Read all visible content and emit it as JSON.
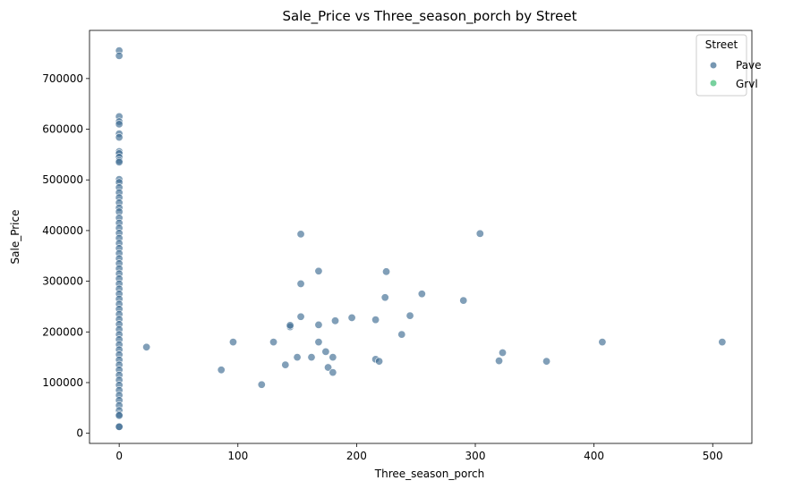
{
  "chart_data": {
    "type": "scatter",
    "title": "Sale_Price vs Three_season_porch by Street",
    "xlabel": "Three_season_porch",
    "ylabel": "Sale_Price",
    "xlim": [
      -25,
      533
    ],
    "ylim": [
      -20000,
      795000
    ],
    "xticks": [
      0,
      100,
      200,
      300,
      400,
      500
    ],
    "yticks": [
      0,
      100000,
      200000,
      300000,
      400000,
      500000,
      600000,
      700000
    ],
    "grid": false,
    "legend": {
      "title": "Street",
      "position": "top-right",
      "entries": [
        {
          "label": "Pave",
          "color": "#3d6b92"
        },
        {
          "label": "Grvl",
          "color": "#56c586"
        }
      ]
    },
    "series": [
      {
        "name": "Pave",
        "color": "#3d6b92",
        "points": [
          {
            "x": 0,
            "y": 755000
          },
          {
            "x": 0,
            "y": 745000
          },
          {
            "x": 0,
            "y": 625000
          },
          {
            "x": 0,
            "y": 615000
          },
          {
            "x": 0,
            "y": 610000
          },
          {
            "x": 0,
            "y": 591000
          },
          {
            "x": 0,
            "y": 584000
          },
          {
            "x": 0,
            "y": 556000
          },
          {
            "x": 0,
            "y": 552000
          },
          {
            "x": 0,
            "y": 545000
          },
          {
            "x": 0,
            "y": 538000
          },
          {
            "x": 0,
            "y": 535000
          },
          {
            "x": 0,
            "y": 501000
          },
          {
            "x": 0,
            "y": 495000
          },
          {
            "x": 0,
            "y": 485000
          },
          {
            "x": 0,
            "y": 475000
          },
          {
            "x": 0,
            "y": 465000
          },
          {
            "x": 0,
            "y": 455000
          },
          {
            "x": 0,
            "y": 445000
          },
          {
            "x": 0,
            "y": 437000
          },
          {
            "x": 0,
            "y": 425000
          },
          {
            "x": 0,
            "y": 415000
          },
          {
            "x": 0,
            "y": 405000
          },
          {
            "x": 0,
            "y": 395000
          },
          {
            "x": 0,
            "y": 385000
          },
          {
            "x": 0,
            "y": 375000
          },
          {
            "x": 0,
            "y": 365000
          },
          {
            "x": 0,
            "y": 355000
          },
          {
            "x": 0,
            "y": 345000
          },
          {
            "x": 0,
            "y": 335000
          },
          {
            "x": 0,
            "y": 325000
          },
          {
            "x": 0,
            "y": 315000
          },
          {
            "x": 0,
            "y": 305000
          },
          {
            "x": 0,
            "y": 295000
          },
          {
            "x": 0,
            "y": 285000
          },
          {
            "x": 0,
            "y": 275000
          },
          {
            "x": 0,
            "y": 265000
          },
          {
            "x": 0,
            "y": 255000
          },
          {
            "x": 0,
            "y": 245000
          },
          {
            "x": 0,
            "y": 235000
          },
          {
            "x": 0,
            "y": 225000
          },
          {
            "x": 0,
            "y": 215000
          },
          {
            "x": 0,
            "y": 205000
          },
          {
            "x": 0,
            "y": 195000
          },
          {
            "x": 0,
            "y": 185000
          },
          {
            "x": 0,
            "y": 175000
          },
          {
            "x": 0,
            "y": 165000
          },
          {
            "x": 0,
            "y": 155000
          },
          {
            "x": 0,
            "y": 145000
          },
          {
            "x": 0,
            "y": 135000
          },
          {
            "x": 0,
            "y": 125000
          },
          {
            "x": 0,
            "y": 115000
          },
          {
            "x": 0,
            "y": 105000
          },
          {
            "x": 0,
            "y": 95000
          },
          {
            "x": 0,
            "y": 85000
          },
          {
            "x": 0,
            "y": 75000
          },
          {
            "x": 0,
            "y": 65000
          },
          {
            "x": 0,
            "y": 55000
          },
          {
            "x": 0,
            "y": 45000
          },
          {
            "x": 0,
            "y": 37000
          },
          {
            "x": 0,
            "y": 35000
          },
          {
            "x": 0,
            "y": 13000
          },
          {
            "x": 0,
            "y": 12800
          },
          {
            "x": 23,
            "y": 170000
          },
          {
            "x": 86,
            "y": 125000
          },
          {
            "x": 96,
            "y": 180000
          },
          {
            "x": 120,
            "y": 96000
          },
          {
            "x": 130,
            "y": 180000
          },
          {
            "x": 140,
            "y": 135000
          },
          {
            "x": 144,
            "y": 210000
          },
          {
            "x": 144,
            "y": 213000
          },
          {
            "x": 150,
            "y": 150000
          },
          {
            "x": 153,
            "y": 393000
          },
          {
            "x": 153,
            "y": 295000
          },
          {
            "x": 153,
            "y": 230000
          },
          {
            "x": 162,
            "y": 150000
          },
          {
            "x": 168,
            "y": 320000
          },
          {
            "x": 168,
            "y": 214000
          },
          {
            "x": 168,
            "y": 180000
          },
          {
            "x": 174,
            "y": 161000
          },
          {
            "x": 176,
            "y": 130000
          },
          {
            "x": 180,
            "y": 150000
          },
          {
            "x": 180,
            "y": 120000
          },
          {
            "x": 182,
            "y": 222000
          },
          {
            "x": 196,
            "y": 228000
          },
          {
            "x": 216,
            "y": 224000
          },
          {
            "x": 216,
            "y": 146000
          },
          {
            "x": 219,
            "y": 142000
          },
          {
            "x": 224,
            "y": 268000
          },
          {
            "x": 225,
            "y": 319000
          },
          {
            "x": 245,
            "y": 232000
          },
          {
            "x": 238,
            "y": 195000
          },
          {
            "x": 255,
            "y": 275000
          },
          {
            "x": 290,
            "y": 262000
          },
          {
            "x": 304,
            "y": 394000
          },
          {
            "x": 320,
            "y": 143000
          },
          {
            "x": 323,
            "y": 159000
          },
          {
            "x": 360,
            "y": 142000
          },
          {
            "x": 407,
            "y": 180000
          },
          {
            "x": 508,
            "y": 180000
          }
        ]
      },
      {
        "name": "Grvl",
        "color": "#56c586",
        "points": []
      }
    ]
  }
}
